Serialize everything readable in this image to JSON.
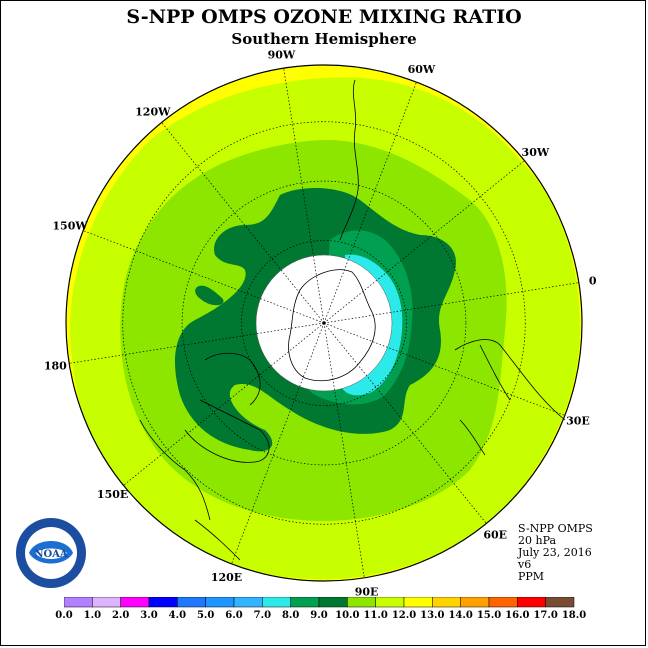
{
  "title": "S-NPP OMPS OZONE MIXING RATIO",
  "subtitle": "Southern Hemisphere",
  "longitude_labels": [
    "90W",
    "60W",
    "30W",
    "0",
    "30E",
    "60E",
    "90E",
    "120E",
    "150E",
    "180",
    "150W",
    "120W"
  ],
  "info": {
    "instrument": "S-NPP OMPS",
    "level": "20 hPa",
    "date": "July 23, 2016",
    "version": "v6",
    "units": "PPM"
  },
  "logo_text": "NOAA",
  "colorbar": {
    "ticks": [
      "0.0",
      "1.0",
      "2.0",
      "3.0",
      "4.0",
      "5.0",
      "6.0",
      "7.0",
      "8.0",
      "9.0",
      "10.0",
      "11.0",
      "12.0",
      "13.0",
      "14.0",
      "15.0",
      "16.0",
      "17.0",
      "18.0"
    ],
    "colors": [
      "#b27fff",
      "#dcb4ff",
      "#ff00ff",
      "#0000ff",
      "#1e78ff",
      "#1e96ff",
      "#32b4ff",
      "#2deaea",
      "#00a050",
      "#007832",
      "#8ce600",
      "#c8ff00",
      "#ffff00",
      "#ffd200",
      "#ffa000",
      "#ff6400",
      "#ff0000",
      "#784b32"
    ]
  }
}
